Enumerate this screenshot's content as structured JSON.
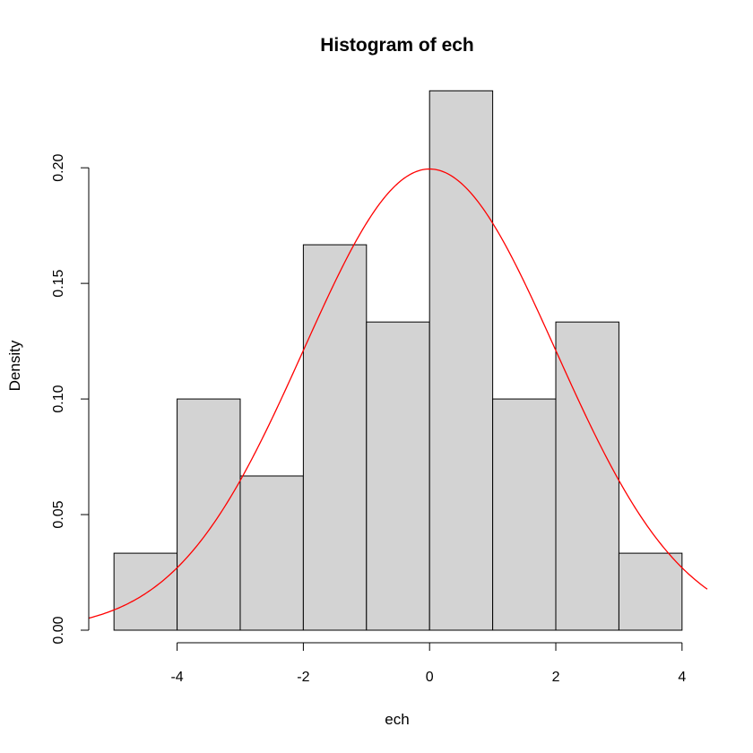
{
  "chart_data": {
    "type": "bar",
    "title": "Histogram of ech",
    "xlabel": "ech",
    "ylabel": "Density",
    "bins": [
      {
        "start": -5,
        "end": -4,
        "density": 0.0333
      },
      {
        "start": -4,
        "end": -3,
        "density": 0.1
      },
      {
        "start": -3,
        "end": -2,
        "density": 0.0667
      },
      {
        "start": -2,
        "end": -1,
        "density": 0.1667
      },
      {
        "start": -1,
        "end": 0,
        "density": 0.1333
      },
      {
        "start": 0,
        "end": 1,
        "density": 0.2333
      },
      {
        "start": 1,
        "end": 2,
        "density": 0.1
      },
      {
        "start": 2,
        "end": 3,
        "density": 0.1333
      },
      {
        "start": 3,
        "end": 4,
        "density": 0.0333
      }
    ],
    "x_ticks": [
      "-4",
      "-2",
      "0",
      "2",
      "4"
    ],
    "y_ticks": [
      "0.00",
      "0.05",
      "0.10",
      "0.15",
      "0.20"
    ],
    "xlim": [
      -5.4,
      4.4
    ],
    "ylim": [
      0,
      0.24
    ],
    "grid": false,
    "bar_fill": "#d3d3d3",
    "bar_stroke": "#000000",
    "curve": {
      "name": "normal density",
      "mean": 0,
      "sd": 2,
      "color": "#ff0000",
      "x_range": [
        -5.4,
        4.4
      ]
    }
  }
}
